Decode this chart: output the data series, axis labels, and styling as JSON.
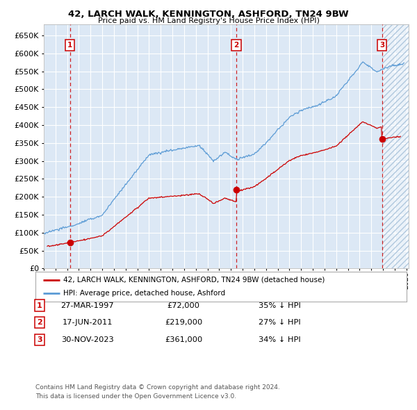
{
  "title": "42, LARCH WALK, KENNINGTON, ASHFORD, TN24 9BW",
  "subtitle": "Price paid vs. HM Land Registry's House Price Index (HPI)",
  "ytick_values": [
    0,
    50000,
    100000,
    150000,
    200000,
    250000,
    300000,
    350000,
    400000,
    450000,
    500000,
    550000,
    600000,
    650000
  ],
  "xmin": 1995.0,
  "xmax": 2026.2,
  "ymin": 0,
  "ymax": 680000,
  "transactions": [
    {
      "num": 1,
      "date": "27-MAR-1997",
      "price": 72000,
      "year": 1997.23,
      "pct": "35% ↓ HPI"
    },
    {
      "num": 2,
      "date": "17-JUN-2011",
      "price": 219000,
      "year": 2011.46,
      "pct": "27% ↓ HPI"
    },
    {
      "num": 3,
      "date": "30-NOV-2023",
      "price": 361000,
      "year": 2023.92,
      "pct": "34% ↓ HPI"
    }
  ],
  "legend1": "42, LARCH WALK, KENNINGTON, ASHFORD, TN24 9BW (detached house)",
  "legend2": "HPI: Average price, detached house, Ashford",
  "footnote1": "Contains HM Land Registry data © Crown copyright and database right 2024.",
  "footnote2": "This data is licensed under the Open Government Licence v3.0.",
  "hpi_color": "#5b9bd5",
  "price_color": "#cc0000",
  "vline_color": "#cc0000",
  "bg_color": "#dce8f5",
  "hatch_bg": "#ccdaeb"
}
